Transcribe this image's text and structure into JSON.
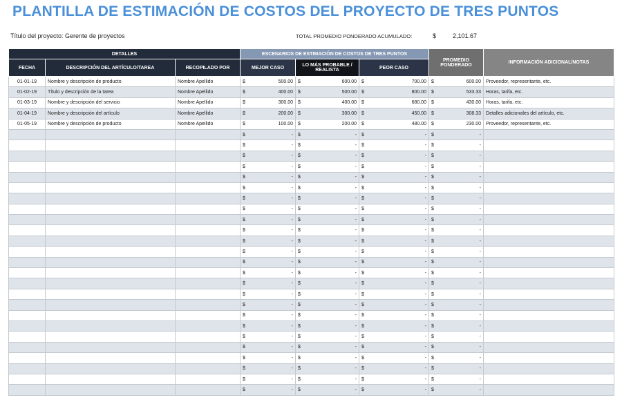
{
  "title": "PLANTILLA DE ESTIMACIÓN DE COSTOS DEL PROYECTO DE TRES PUNTOS",
  "project": "Título del proyecto: Gerente de proyectos",
  "total": {
    "label": "TOTAL PROMEDIO PONDERADO ACUMULADO:",
    "currency": "$",
    "value": "2,101.67"
  },
  "table": {
    "groups": [
      "DETALLES",
      "ESCENARIOS DE ESTIMACIÓN DE COSTOS DE TRES PUNTOS",
      "PROMEDIO PONDERADO",
      "INFORMACIÓN ADICIONAL/NOTAS"
    ],
    "columns": [
      "FECHA",
      "DESCRIPCIÓN DEL ARTÍCULO/TAREA",
      "RECOPILADO POR",
      "MEJOR CASO",
      "LO MÁS PROBABLE / REALISTA",
      "PEOR CASO"
    ],
    "rows": [
      [
        "01-01-19",
        "Nombre y descripción de producto",
        "Nombre Apellido",
        "$",
        "500.00",
        "$",
        "600.00",
        "$",
        "700.00",
        "$",
        "600.00",
        "Proveedor, representante, etc."
      ],
      [
        "01-02-19",
        "Título y descripción de la tarea",
        "Nombre Apellido",
        "$",
        "400.00",
        "$",
        "500.00",
        "$",
        "800.00",
        "$",
        "533.33",
        "Horas, tarifa, etc."
      ],
      [
        "01-03-19",
        "Nombre y descripción del servicio",
        "Nombre Apellido",
        "$",
        "300.00",
        "$",
        "400.00",
        "$",
        "680.00",
        "$",
        "430.00",
        "Horas, tarifa, etc."
      ],
      [
        "01-04-19",
        "Nombre y descripción del artículo",
        "Nombre Apellido",
        "$",
        "200.00",
        "$",
        "300.00",
        "$",
        "450.00",
        "$",
        "308.33",
        "Detalles adicionales del artículo, etc."
      ],
      [
        "01-05-19",
        "Nombre y descripción de producto",
        "Nombre Apellido",
        "$",
        "100.00",
        "$",
        "200.00",
        "$",
        "480.00",
        "$",
        "230.00",
        "Proveedor, representante, etc."
      ],
      [
        null,
        null,
        null,
        "$",
        "-",
        "$",
        "-",
        "$",
        "-",
        "$",
        "-",
        null
      ],
      [
        null,
        null,
        null,
        "$",
        "-",
        "$",
        "-",
        "$",
        "-",
        "$",
        "-",
        null
      ],
      [
        null,
        null,
        null,
        "$",
        "-",
        "$",
        "-",
        "$",
        "-",
        "$",
        "-",
        null
      ],
      [
        null,
        null,
        null,
        "$",
        "-",
        "$",
        "-",
        "$",
        "-",
        "$",
        "-",
        null
      ],
      [
        null,
        null,
        null,
        "$",
        "-",
        "$",
        "-",
        "$",
        "-",
        "$",
        "-",
        null
      ],
      [
        null,
        null,
        null,
        "$",
        "-",
        "$",
        "-",
        "$",
        "-",
        "$",
        "-",
        null
      ],
      [
        null,
        null,
        null,
        "$",
        "-",
        "$",
        "-",
        "$",
        "-",
        "$",
        "-",
        null
      ],
      [
        null,
        null,
        null,
        "$",
        "-",
        "$",
        "-",
        "$",
        "-",
        "$",
        "-",
        null
      ],
      [
        null,
        null,
        null,
        "$",
        "-",
        "$",
        "-",
        "$",
        "-",
        "$",
        "-",
        null
      ],
      [
        null,
        null,
        null,
        "$",
        "-",
        "$",
        "-",
        "$",
        "-",
        "$",
        "-",
        null
      ],
      [
        null,
        null,
        null,
        "$",
        "-",
        "$",
        "-",
        "$",
        "-",
        "$",
        "-",
        null
      ],
      [
        null,
        null,
        null,
        "$",
        "-",
        "$",
        "-",
        "$",
        "-",
        "$",
        "-",
        null
      ],
      [
        null,
        null,
        null,
        "$",
        "-",
        "$",
        "-",
        "$",
        "-",
        "$",
        "-",
        null
      ],
      [
        null,
        null,
        null,
        "$",
        "-",
        "$",
        "-",
        "$",
        "-",
        "$",
        "-",
        null
      ],
      [
        null,
        null,
        null,
        "$",
        "-",
        "$",
        "-",
        "$",
        "-",
        "$",
        "-",
        null
      ],
      [
        null,
        null,
        null,
        "$",
        "-",
        "$",
        "-",
        "$",
        "-",
        "$",
        "-",
        null
      ],
      [
        null,
        null,
        null,
        "$",
        "-",
        "$",
        "-",
        "$",
        "-",
        "$",
        "-",
        null
      ],
      [
        null,
        null,
        null,
        "$",
        "-",
        "$",
        "-",
        "$",
        "-",
        "$",
        "-",
        null
      ],
      [
        null,
        null,
        null,
        "$",
        "-",
        "$",
        "-",
        "$",
        "-",
        "$",
        "-",
        null
      ],
      [
        null,
        null,
        null,
        "$",
        "-",
        "$",
        "-",
        "$",
        "-",
        "$",
        "-",
        null
      ],
      [
        null,
        null,
        null,
        "$",
        "-",
        "$",
        "-",
        "$",
        "-",
        "$",
        "-",
        null
      ],
      [
        null,
        null,
        null,
        "$",
        "-",
        "$",
        "-",
        "$",
        "-",
        "$",
        "-",
        null
      ],
      [
        null,
        null,
        null,
        "$",
        "-",
        "$",
        "-",
        "$",
        "-",
        "$",
        "-",
        null
      ],
      [
        null,
        null,
        null,
        "$",
        "-",
        "$",
        "-",
        "$",
        "-",
        "$",
        "-",
        null
      ],
      [
        null,
        null,
        null,
        "$",
        "-",
        "$",
        "-",
        "$",
        "-",
        "$",
        "-",
        null
      ]
    ]
  }
}
